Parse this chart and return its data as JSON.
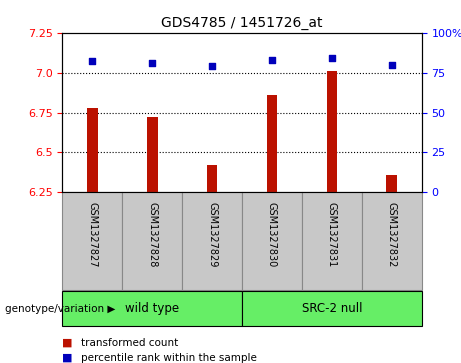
{
  "title": "GDS4785 / 1451726_at",
  "samples": [
    "GSM1327827",
    "GSM1327828",
    "GSM1327829",
    "GSM1327830",
    "GSM1327831",
    "GSM1327832"
  ],
  "bar_values": [
    6.78,
    6.72,
    6.42,
    6.86,
    7.01,
    6.36
  ],
  "scatter_values": [
    82,
    81,
    79,
    83,
    84,
    80
  ],
  "bar_bottom": 6.25,
  "ylim_left": [
    6.25,
    7.25
  ],
  "ylim_right": [
    0,
    100
  ],
  "yticks_left": [
    6.25,
    6.5,
    6.75,
    7.0,
    7.25
  ],
  "yticks_right": [
    0,
    25,
    50,
    75,
    100
  ],
  "ytick_labels_right": [
    "0",
    "25",
    "50",
    "75",
    "100%"
  ],
  "hlines": [
    6.5,
    6.75,
    7.0
  ],
  "bar_color": "#bb1100",
  "scatter_color": "#0000bb",
  "group1_label": "wild type",
  "group2_label": "SRC-2 null",
  "group_color": "#66ee66",
  "xlabel_left": "genotype/variation",
  "legend_red": "transformed count",
  "legend_blue": "percentile rank within the sample",
  "gray_bg": "#c8c8c8",
  "gray_border": "#888888",
  "bar_width": 0.18
}
